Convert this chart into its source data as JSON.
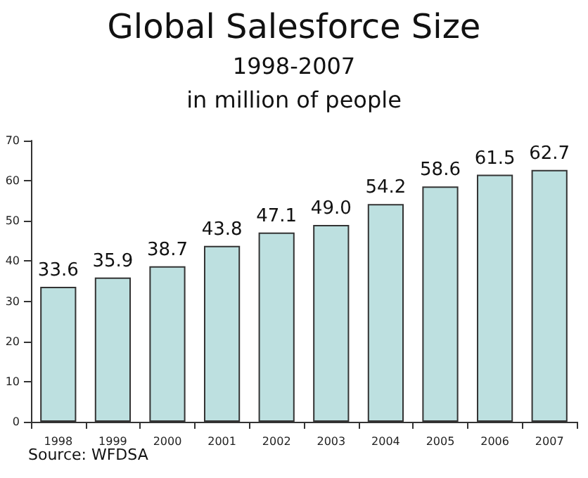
{
  "chart_data": {
    "type": "bar",
    "title": "Global Salesforce Size",
    "subtitle": "1998-2007\nin million of people",
    "categories": [
      "1998",
      "1999",
      "2000",
      "2001",
      "2002",
      "2003",
      "2004",
      "2005",
      "2006",
      "2007"
    ],
    "values": [
      33.6,
      35.9,
      38.7,
      43.8,
      47.1,
      49.0,
      54.2,
      58.6,
      61.5,
      62.7
    ],
    "value_labels": [
      "33.6",
      "35.9",
      "38.7",
      "43.8",
      "47.1",
      "49.0",
      "54.2",
      "58.6",
      "61.5",
      "62.7"
    ],
    "color": "#bde0e0",
    "ylim": [
      0,
      70
    ],
    "yticks": [
      0,
      10,
      20,
      30,
      40,
      50,
      60,
      70
    ],
    "grid": false,
    "annotations": [
      "Source: WFDSA"
    ]
  }
}
